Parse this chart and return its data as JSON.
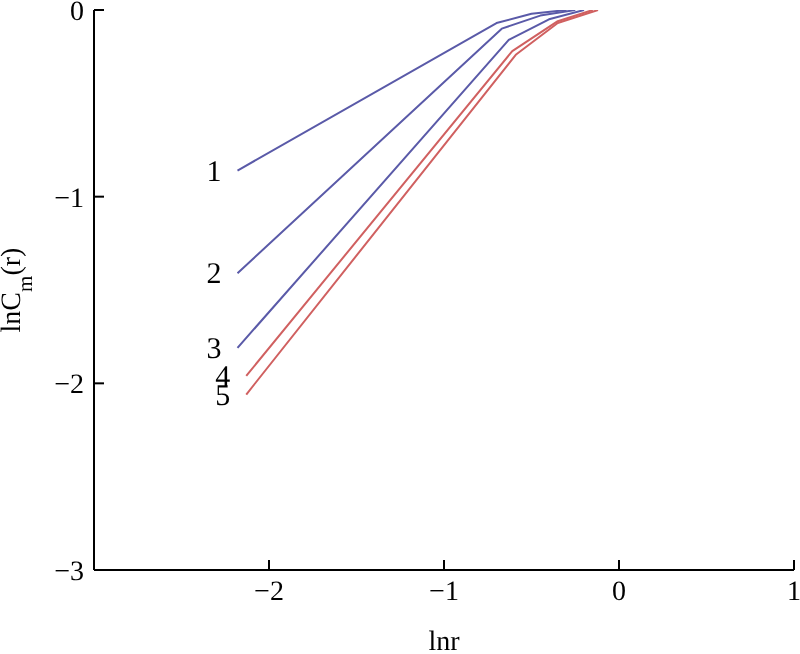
{
  "chart_data": {
    "type": "line",
    "xlabel": "lnr",
    "ylabel": "lnC$_{m}$(r)",
    "xlim": [
      -3,
      1
    ],
    "xticks": [
      -2,
      -1,
      0,
      1
    ],
    "ylim": [
      -3,
      0
    ],
    "yticks": [
      -3,
      -2,
      -1,
      0
    ],
    "grid": false,
    "legend": false,
    "marker": "none",
    "line_style": "solid",
    "series": [
      {
        "name": "1",
        "color": "#5a5aa8",
        "x": [
          -2.18,
          -0.7,
          -0.5,
          -0.3
        ],
        "values": [
          -0.86,
          -0.07,
          -0.02,
          0
        ]
      },
      {
        "name": "2",
        "color": "#5a5aa8",
        "x": [
          -2.18,
          -0.67,
          -0.45,
          -0.25
        ],
        "values": [
          -1.41,
          -0.1,
          -0.03,
          0
        ]
      },
      {
        "name": "3",
        "color": "#5a5aa8",
        "x": [
          -2.18,
          -0.63,
          -0.4,
          -0.2
        ],
        "values": [
          -1.81,
          -0.16,
          -0.05,
          0
        ]
      },
      {
        "name": "4",
        "color": "#d06060",
        "x": [
          -2.13,
          -0.61,
          -0.35,
          -0.15
        ],
        "values": [
          -1.96,
          -0.22,
          -0.06,
          0
        ]
      },
      {
        "name": "5",
        "color": "#d06060",
        "x": [
          -2.13,
          -0.59,
          -0.35,
          -0.12
        ],
        "values": [
          -2.06,
          -0.24,
          -0.07,
          0
        ]
      }
    ]
  }
}
